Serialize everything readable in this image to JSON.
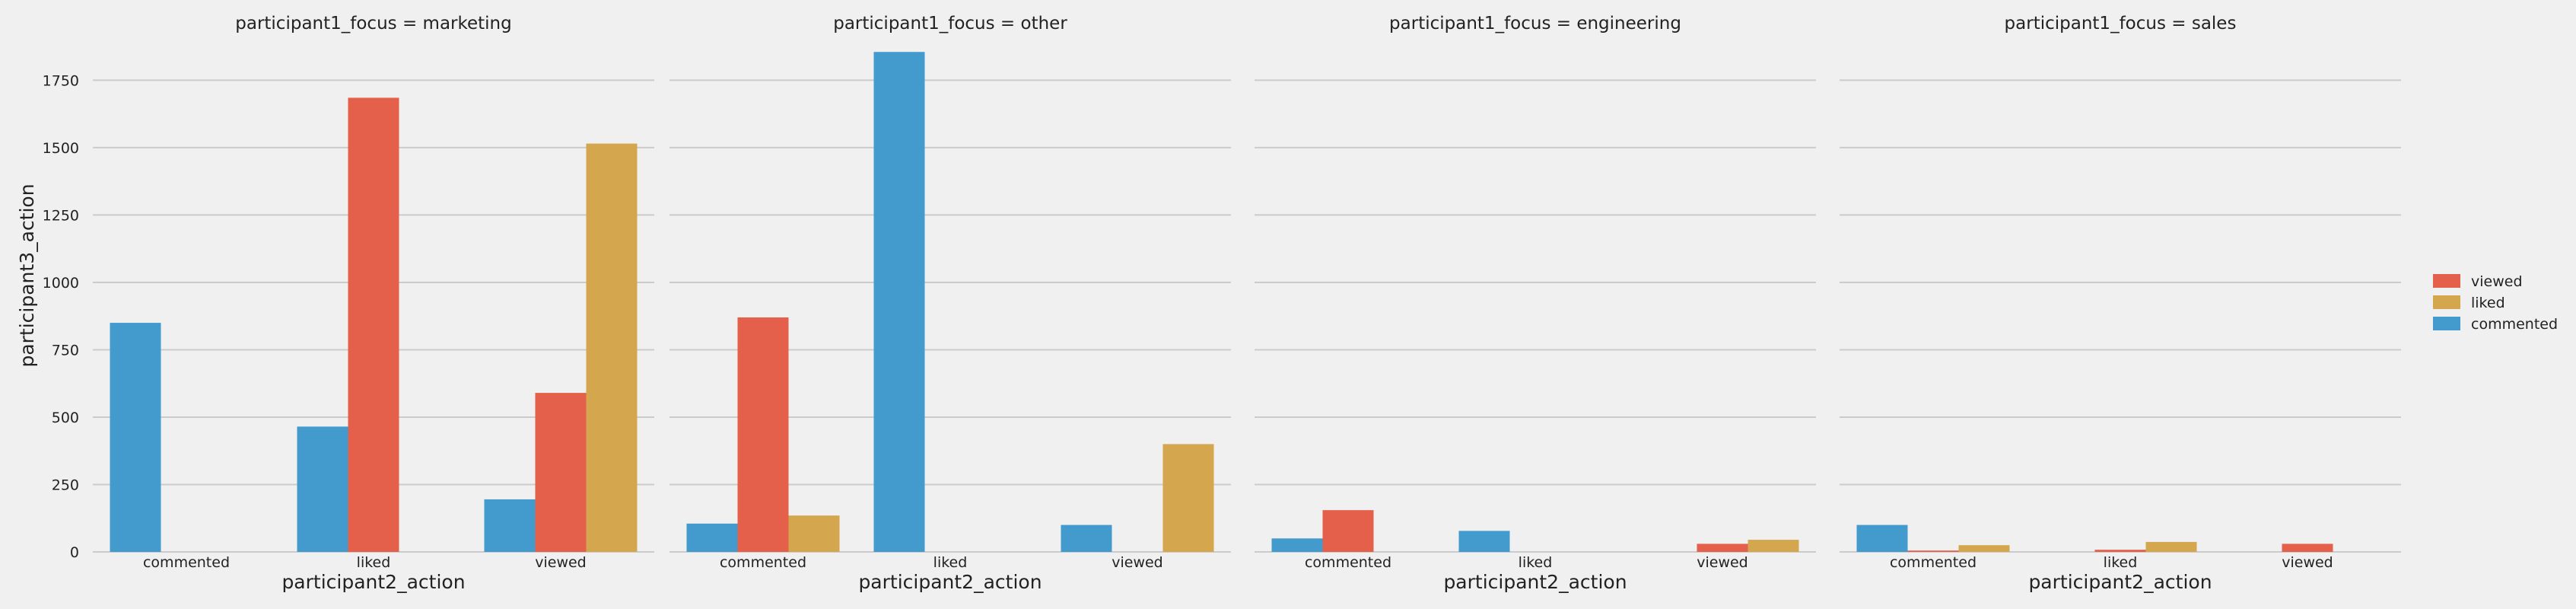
{
  "chart_data": {
    "type": "bar",
    "ylabel": "participant3_action",
    "ylim": [
      0,
      1850
    ],
    "yticks": [
      0,
      250,
      500,
      750,
      1000,
      1250,
      1500,
      1750
    ],
    "colors": {
      "viewed": "#e5604a",
      "liked": "#d4a64e",
      "commented": "#429bcc"
    },
    "legend": {
      "placement": "right",
      "entries": [
        "viewed",
        "liked",
        "commented"
      ]
    },
    "facets": [
      {
        "title": "participant1_focus = marketing",
        "xlabel": "participant2_action",
        "categories": [
          "commented",
          "liked",
          "viewed"
        ],
        "series": [
          {
            "name": "commented",
            "values": [
              850,
              465,
              195
            ]
          },
          {
            "name": "viewed",
            "values": [
              0,
              1685,
              590
            ]
          },
          {
            "name": "liked",
            "values": [
              0,
              0,
              1515
            ]
          }
        ]
      },
      {
        "title": "participant1_focus = other",
        "xlabel": "participant2_action",
        "categories": [
          "commented",
          "liked",
          "viewed"
        ],
        "series": [
          {
            "name": "commented",
            "values": [
              105,
              1855,
              100
            ]
          },
          {
            "name": "viewed",
            "values": [
              870,
              0,
              0
            ]
          },
          {
            "name": "liked",
            "values": [
              135,
              0,
              400
            ]
          }
        ]
      },
      {
        "title": "participant1_focus = engineering",
        "xlabel": "participant2_action",
        "categories": [
          "commented",
          "liked",
          "viewed"
        ],
        "series": [
          {
            "name": "commented",
            "values": [
              50,
              78,
              0
            ]
          },
          {
            "name": "viewed",
            "values": [
              155,
              0,
              30
            ]
          },
          {
            "name": "liked",
            "values": [
              0,
              0,
              45
            ]
          }
        ]
      },
      {
        "title": "participant1_focus = sales",
        "xlabel": "participant2_action",
        "categories": [
          "commented",
          "liked",
          "viewed"
        ],
        "series": [
          {
            "name": "commented",
            "values": [
              100,
              0,
              0
            ]
          },
          {
            "name": "viewed",
            "values": [
              5,
              8,
              30
            ]
          },
          {
            "name": "liked",
            "values": [
              25,
              37,
              0
            ]
          }
        ]
      }
    ]
  }
}
